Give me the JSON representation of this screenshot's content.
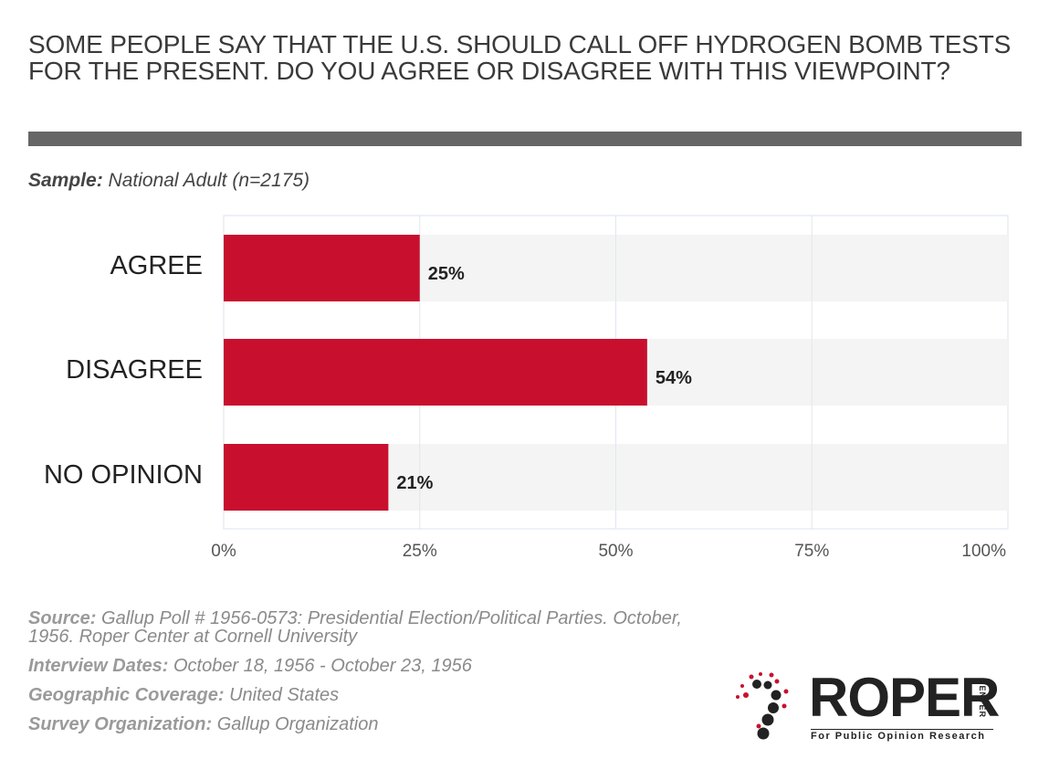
{
  "title": "SOME PEOPLE SAY THAT THE U.S. SHOULD CALL OFF HYDROGEN BOMB TESTS FOR THE PRESENT. DO YOU AGREE OR DISAGREE WITH THIS VIEWPOINT?",
  "sample": {
    "label": "Sample:",
    "value": "National Adult (n=2175)"
  },
  "chart_data": {
    "type": "bar",
    "orientation": "horizontal",
    "categories": [
      "AGREE",
      "DISAGREE",
      "NO OPINION"
    ],
    "values": [
      25,
      54,
      21
    ],
    "value_labels": [
      "25%",
      "54%",
      "21%"
    ],
    "xlim": [
      0,
      100
    ],
    "xticks": [
      "0%",
      "25%",
      "50%",
      "75%",
      "100%"
    ],
    "grid": true,
    "bar_color": "#c8102e",
    "track_color": "#f4f4f4"
  },
  "footer": {
    "source_label": "Source:",
    "source_line1": "Gallup Poll # 1956-0573: Presidential Election/Political Parties. October,",
    "source_line2": "1956. Roper Center at Cornell University",
    "dates_label": "Interview Dates:",
    "dates_value": "October 18, 1956 - October 23, 1956",
    "geo_label": "Geographic Coverage:",
    "geo_value": "United States",
    "org_label": "Survey Organization:",
    "org_value": "Gallup Organization"
  },
  "logo": {
    "word": "ROPER",
    "side": "CENTER",
    "tagline": "For Public Opinion Research"
  }
}
